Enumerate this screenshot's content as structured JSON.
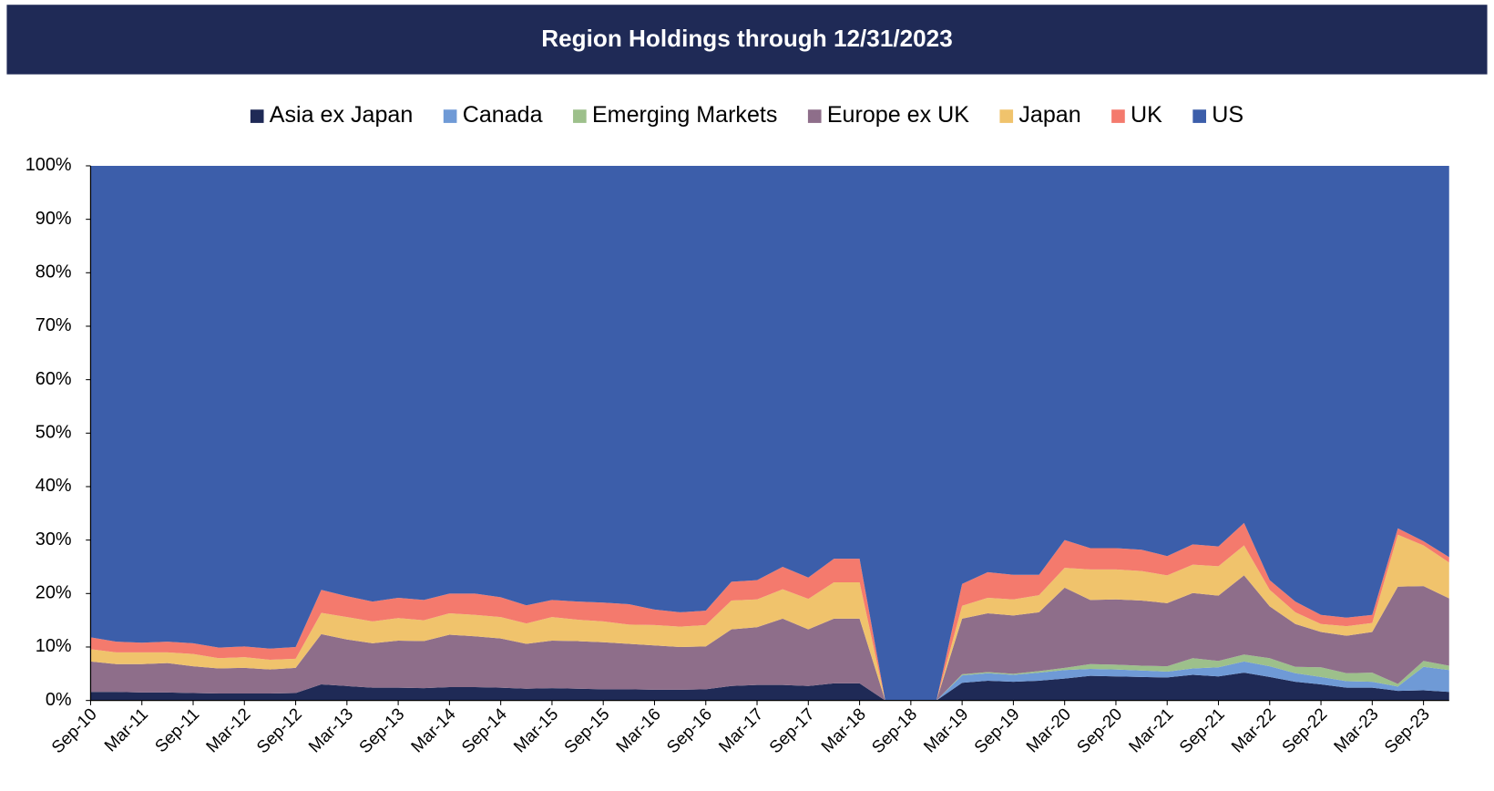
{
  "chart_data": {
    "type": "stacked-area",
    "title": "Region Holdings through 12/31/2023",
    "categories": [
      "Sep-10",
      null,
      "Mar-11",
      null,
      "Sep-11",
      null,
      "Mar-12",
      null,
      "Sep-12",
      null,
      "Mar-13",
      null,
      "Sep-13",
      null,
      "Mar-14",
      null,
      "Sep-14",
      null,
      "Mar-15",
      null,
      "Sep-15",
      null,
      "Mar-16",
      null,
      "Sep-16",
      null,
      "Mar-17",
      null,
      "Sep-17",
      null,
      "Mar-18",
      null,
      "Sep-18",
      null,
      "Mar-19",
      null,
      "Sep-19",
      null,
      "Mar-20",
      null,
      "Sep-20",
      null,
      "Mar-21",
      null,
      "Sep-21",
      null,
      "Mar-22",
      null,
      "Sep-22",
      null,
      "Mar-23",
      null,
      "Sep-23",
      null
    ],
    "series": [
      {
        "name": "Asia ex Japan",
        "color": "#1f2a56",
        "values": [
          1.6,
          1.6,
          1.5,
          1.5,
          1.4,
          1.3,
          1.3,
          1.3,
          1.4,
          3.0,
          2.7,
          2.4,
          2.4,
          2.3,
          2.5,
          2.5,
          2.4,
          2.2,
          2.3,
          2.2,
          2.1,
          2.1,
          2.0,
          2.0,
          2.1,
          2.7,
          2.9,
          2.9,
          2.7,
          3.2,
          3.2,
          0,
          0,
          0,
          3.3,
          3.7,
          3.5,
          3.7,
          4.1,
          4.6,
          4.5,
          4.4,
          4.3,
          4.8,
          4.5,
          5.2,
          4.4,
          3.5,
          3.0,
          2.4,
          2.4,
          1.8,
          1.9,
          1.6
        ]
      },
      {
        "name": "Canada",
        "color": "#6f9ad6",
        "values": [
          0,
          0,
          0,
          0,
          0,
          0,
          0,
          0,
          0,
          0,
          0,
          0,
          0,
          0,
          0,
          0,
          0,
          0,
          0,
          0,
          0,
          0,
          0,
          0,
          0,
          0,
          0,
          0,
          0,
          0,
          0,
          0,
          0,
          0,
          1.4,
          1.4,
          1.3,
          1.5,
          1.6,
          1.3,
          1.3,
          1.2,
          1.1,
          1.2,
          1.7,
          2.1,
          2.0,
          1.6,
          1.4,
          1.2,
          1.1,
          0.8,
          4.4,
          4.1
        ]
      },
      {
        "name": "Emerging Markets",
        "color": "#9dc08b",
        "values": [
          0,
          0,
          0,
          0,
          0,
          0,
          0,
          0,
          0,
          0,
          0,
          0,
          0,
          0,
          0,
          0,
          0,
          0,
          0,
          0,
          0,
          0,
          0,
          0,
          0,
          0,
          0,
          0,
          0,
          0,
          0,
          0,
          0,
          0,
          0.2,
          0.2,
          0.2,
          0.3,
          0.4,
          0.9,
          0.9,
          0.9,
          1.0,
          1.9,
          1.2,
          1.3,
          1.5,
          1.2,
          1.8,
          1.5,
          1.7,
          0.5,
          1.1,
          0.8
        ]
      },
      {
        "name": "Europe ex UK",
        "color": "#8e6e8a",
        "values": [
          5.7,
          5.2,
          5.3,
          5.5,
          5.0,
          4.7,
          4.8,
          4.5,
          4.7,
          9.4,
          8.7,
          8.3,
          8.8,
          8.8,
          9.8,
          9.5,
          9.2,
          8.4,
          8.9,
          8.9,
          8.8,
          8.5,
          8.3,
          8.0,
          8.0,
          10.6,
          10.8,
          12.4,
          10.6,
          12.1,
          12.1,
          0,
          0,
          0,
          10.4,
          11.0,
          10.9,
          11.0,
          15.0,
          12.0,
          12.2,
          12.2,
          11.8,
          12.2,
          12.2,
          14.8,
          9.7,
          8.0,
          6.6,
          7.0,
          7.6,
          18.2,
          14.0,
          12.6
        ]
      },
      {
        "name": "Japan",
        "color": "#f0c36c",
        "values": [
          2.3,
          2.2,
          2.2,
          2.0,
          2.3,
          1.9,
          2.0,
          1.8,
          1.7,
          4.0,
          4.2,
          4.1,
          4.2,
          3.9,
          4.0,
          4.0,
          4.0,
          3.8,
          4.4,
          4.0,
          3.9,
          3.6,
          3.8,
          3.8,
          4.0,
          5.4,
          5.2,
          5.5,
          5.7,
          6.8,
          6.8,
          0,
          0,
          0,
          2.4,
          2.9,
          3.0,
          3.2,
          3.7,
          5.7,
          5.6,
          5.5,
          5.2,
          5.3,
          5.5,
          5.6,
          3.1,
          2.2,
          1.5,
          1.8,
          1.7,
          9.7,
          7.6,
          6.7
        ]
      },
      {
        "name": "UK",
        "color": "#f47a6d",
        "values": [
          2.2,
          2.0,
          1.8,
          2.0,
          2.0,
          2.0,
          2.0,
          2.1,
          2.2,
          4.3,
          3.9,
          3.7,
          3.8,
          3.8,
          3.7,
          4.0,
          3.7,
          3.4,
          3.2,
          3.4,
          3.5,
          3.8,
          2.9,
          2.7,
          2.7,
          3.5,
          3.6,
          4.2,
          4.0,
          4.4,
          4.4,
          0,
          0,
          0,
          4.1,
          4.8,
          4.6,
          3.8,
          5.2,
          4.0,
          4.0,
          4.0,
          3.6,
          3.8,
          3.7,
          4.2,
          1.8,
          2.0,
          1.7,
          1.6,
          1.5,
          1.2,
          0.8,
          1.0
        ]
      },
      {
        "name": "US",
        "color": "#3c5eaa",
        "values": [
          88.2,
          89.0,
          89.2,
          89.0,
          89.3,
          90.1,
          89.9,
          90.3,
          90.0,
          79.3,
          80.5,
          81.5,
          80.8,
          81.2,
          80.0,
          80.0,
          80.7,
          82.2,
          81.2,
          81.5,
          81.7,
          82.0,
          83.0,
          83.5,
          83.2,
          77.8,
          77.5,
          75.0,
          77.0,
          73.5,
          73.5,
          100,
          100,
          100,
          78.2,
          76.0,
          76.5,
          76.5,
          70.0,
          71.5,
          71.5,
          71.8,
          73.0,
          70.8,
          71.2,
          66.8,
          77.5,
          81.5,
          84.0,
          84.5,
          84.0,
          67.8,
          70.2,
          73.2
        ]
      }
    ],
    "ylim": [
      0,
      100
    ],
    "yticks": [
      {
        "value": 0,
        "label": "0%"
      },
      {
        "value": 10,
        "label": "10%"
      },
      {
        "value": 20,
        "label": "20%"
      },
      {
        "value": 30,
        "label": "30%"
      },
      {
        "value": 40,
        "label": "40%"
      },
      {
        "value": 50,
        "label": "50%"
      },
      {
        "value": 60,
        "label": "60%"
      },
      {
        "value": 70,
        "label": "70%"
      },
      {
        "value": 80,
        "label": "80%"
      },
      {
        "value": 90,
        "label": "90%"
      },
      {
        "value": 100,
        "label": "100%"
      }
    ],
    "legend": "top"
  }
}
